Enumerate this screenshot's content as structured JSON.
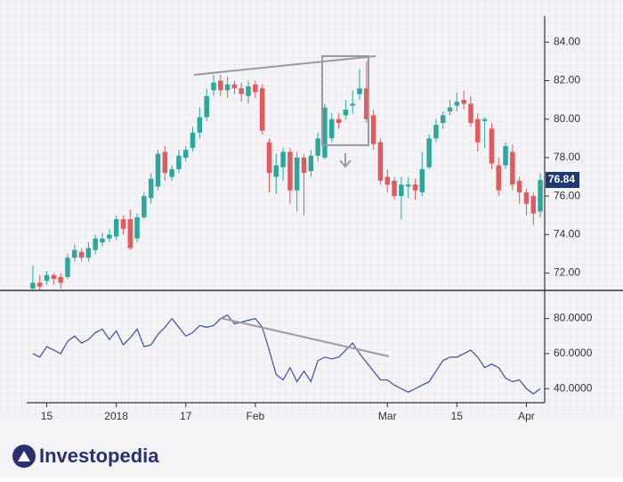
{
  "chart_data": [
    {
      "type": "candlestick",
      "categories": [
        null,
        null,
        "15",
        null,
        null,
        null,
        null,
        null,
        null,
        null,
        null,
        null,
        "2018",
        null,
        null,
        null,
        null,
        null,
        null,
        null,
        null,
        null,
        "17",
        null,
        null,
        null,
        null,
        null,
        null,
        null,
        null,
        null,
        "Feb",
        null,
        null,
        null,
        null,
        null,
        null,
        null,
        null,
        null,
        null,
        null,
        null,
        null,
        null,
        null,
        null,
        null,
        null,
        "Mar",
        null,
        null,
        null,
        null,
        null,
        null,
        null,
        null,
        null,
        "15",
        null,
        null,
        null,
        null,
        null,
        null,
        null,
        null,
        null,
        "Apr",
        null,
        null
      ],
      "open": [
        71.2,
        71.5,
        71.6,
        71.9,
        71.8,
        71.8,
        72.8,
        73.1,
        72.8,
        73.2,
        73.6,
        73.8,
        73.9,
        74.8,
        74.8,
        73.8,
        74.9,
        75.9,
        76.5,
        78.3,
        77.0,
        77.4,
        78.0,
        78.5,
        79.3,
        80.1,
        81.5,
        82.0,
        81.5,
        81.8,
        81.6,
        81.2,
        81.8,
        81.6,
        78.8,
        77.0,
        77.5,
        78.3,
        76.3,
        78.0,
        77.3,
        78.1,
        78.0,
        79.0,
        80.0,
        80.2,
        80.7,
        81.3,
        81.6,
        80.2,
        78.8,
        77.0,
        76.8,
        76.0,
        76.5,
        76.6,
        76.2,
        77.5,
        79.0,
        79.8,
        80.4,
        80.7,
        81.0,
        80.8,
        80.0,
        79.9,
        79.5,
        77.6,
        77.6,
        78.3,
        76.8,
        76.2,
        76.0,
        75.2
      ],
      "high": [
        72.4,
        71.9,
        72.1,
        72.0,
        72.0,
        73.0,
        73.5,
        73.3,
        73.6,
        74.0,
        74.1,
        74.3,
        75.0,
        75.0,
        75.3,
        75.1,
        76.2,
        77.2,
        78.4,
        78.6,
        77.6,
        78.4,
        78.6,
        79.6,
        80.6,
        81.6,
        82.3,
        82.3,
        82.2,
        82.0,
        81.9,
        82.0,
        82.0,
        81.8,
        79.0,
        78.2,
        78.5,
        78.5,
        78.3,
        78.2,
        78.4,
        79.3,
        80.8,
        80.3,
        80.3,
        81.0,
        81.5,
        82.6,
        83.0,
        80.5,
        79.0,
        77.4,
        77.0,
        77.0,
        77.0,
        76.9,
        78.3,
        79.2,
        80.0,
        80.4,
        81.0,
        81.4,
        81.5,
        81.2,
        80.3,
        80.1,
        79.8,
        78.0,
        78.8,
        78.7,
        77.0,
        76.4,
        76.2,
        77.2
      ],
      "low": [
        71.1,
        71.1,
        71.4,
        71.4,
        71.2,
        71.7,
        72.6,
        72.6,
        72.6,
        73.0,
        73.4,
        73.6,
        73.7,
        74.0,
        73.2,
        73.6,
        74.8,
        75.6,
        76.3,
        76.8,
        76.8,
        77.2,
        77.8,
        78.3,
        79.0,
        79.9,
        81.2,
        81.2,
        81.1,
        81.3,
        80.9,
        80.8,
        81.1,
        79.2,
        76.2,
        76.1,
        76.8,
        75.6,
        75.2,
        75.0,
        77.0,
        77.8,
        77.9,
        78.8,
        79.5,
        80.0,
        80.3,
        81.0,
        79.8,
        78.4,
        76.6,
        76.2,
        75.8,
        74.8,
        75.9,
        75.8,
        76.0,
        77.4,
        78.8,
        79.5,
        80.2,
        80.4,
        80.5,
        79.6,
        78.3,
        78.5,
        77.4,
        76.0,
        77.4,
        76.3,
        75.6,
        75.0,
        74.5,
        74.9
      ],
      "close": [
        71.5,
        71.3,
        71.9,
        71.7,
        71.5,
        72.8,
        73.2,
        72.8,
        73.3,
        73.8,
        73.8,
        74.0,
        74.8,
        74.3,
        73.3,
        74.9,
        76.0,
        76.9,
        78.2,
        77.2,
        77.4,
        78.1,
        78.4,
        79.3,
        80.1,
        81.2,
        81.9,
        81.5,
        81.8,
        81.6,
        81.3,
        81.7,
        81.4,
        79.4,
        77.2,
        77.6,
        78.3,
        76.3,
        78.0,
        77.2,
        78.1,
        79.0,
        80.6,
        80.0,
        79.8,
        80.5,
        80.8,
        81.6,
        80.0,
        78.7,
        76.8,
        76.6,
        76.0,
        76.6,
        76.6,
        76.3,
        77.4,
        79.0,
        79.7,
        80.2,
        80.6,
        80.9,
        80.8,
        79.8,
        78.8,
        80.0,
        77.7,
        76.3,
        78.6,
        76.6,
        76.2,
        75.6,
        75.1,
        76.84
      ],
      "up_color": "#2ba89c",
      "down_color": "#e05a5e",
      "ylim": [
        71.1,
        84.8
      ],
      "yticks": [
        {
          "value": 72,
          "label": "72.00"
        },
        {
          "value": 74,
          "label": "74.00"
        },
        {
          "value": 76,
          "label": "76.00"
        },
        {
          "value": 78,
          "label": "78.00"
        },
        {
          "value": 80,
          "label": "80.00"
        },
        {
          "value": 82,
          "label": "82.00"
        },
        {
          "value": 84,
          "label": "84.00"
        }
      ]
    },
    {
      "type": "line",
      "values": [
        60,
        58,
        64,
        62,
        60,
        67,
        70,
        66,
        68,
        72,
        74,
        68,
        73,
        65,
        69,
        74,
        64,
        65,
        71,
        75,
        80,
        75,
        70,
        72,
        76,
        75,
        76,
        80,
        82,
        77,
        78,
        79,
        80,
        75,
        62,
        48,
        45,
        52,
        44,
        50,
        44,
        56,
        58,
        57,
        58,
        62,
        66,
        60,
        55,
        50,
        45,
        45,
        42,
        40,
        38,
        40,
        42,
        44,
        50,
        56,
        58,
        58,
        60,
        62,
        58,
        52,
        54,
        52,
        46,
        44,
        45,
        40,
        37,
        40
      ],
      "color": "#3a4fa0",
      "ylim": [
        32,
        94
      ],
      "yticks": [
        {
          "value": 40,
          "label": "40.0000"
        },
        {
          "value": 60,
          "label": "60.0000"
        },
        {
          "value": 80,
          "label": "80.0000"
        }
      ]
    }
  ],
  "brand": "Investopedia"
}
